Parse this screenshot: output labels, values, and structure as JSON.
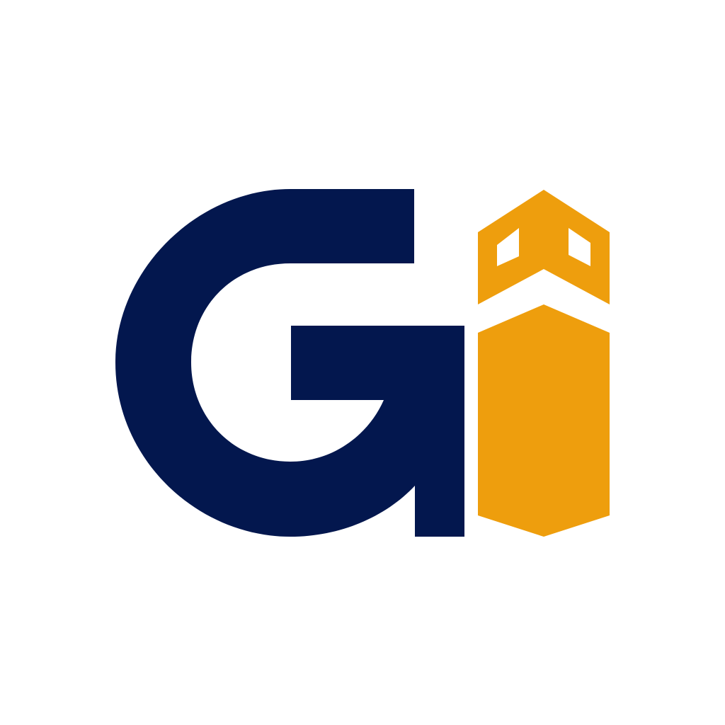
{
  "logo": {
    "lettering": "Gi",
    "colors": {
      "background": "#ffffff",
      "g_letter": "#03174e",
      "i_letter": "#ee9e0d",
      "windows": "#ffffff"
    },
    "icons": [
      "g-letter-icon",
      "i-tower-icon"
    ]
  }
}
